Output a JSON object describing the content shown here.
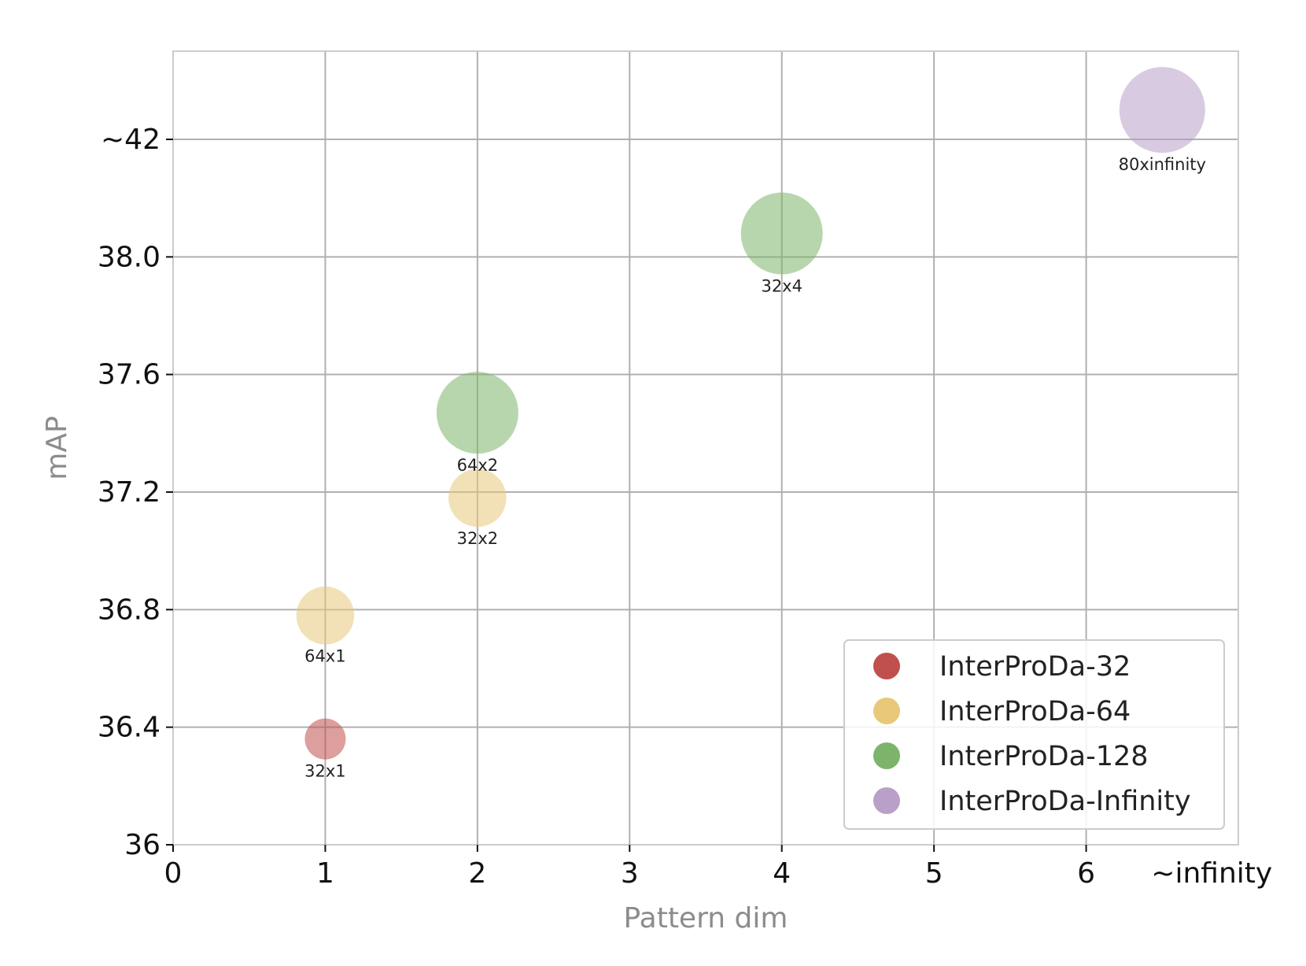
{
  "chart_data": {
    "type": "scatter",
    "xlabel": "Pattern dim",
    "ylabel": "mAP",
    "x_ticks": [
      {
        "value": 0,
        "label": "0"
      },
      {
        "value": 1,
        "label": "1"
      },
      {
        "value": 2,
        "label": "2"
      },
      {
        "value": 3,
        "label": "3"
      },
      {
        "value": 4,
        "label": "4"
      },
      {
        "value": 5,
        "label": "5"
      },
      {
        "value": 6,
        "label": "6"
      },
      {
        "value": 6.5,
        "label": "~infinity"
      }
    ],
    "y_ticks": [
      {
        "value": 36.0,
        "label": "36"
      },
      {
        "value": 36.4,
        "label": "36.4"
      },
      {
        "value": 36.8,
        "label": "36.8"
      },
      {
        "value": 37.2,
        "label": "37.2"
      },
      {
        "value": 37.6,
        "label": "37.6"
      },
      {
        "value": 38.0,
        "label": "38.0"
      },
      {
        "value": 38.4,
        "label": "~42"
      }
    ],
    "xlim": [
      0,
      7
    ],
    "ylim": [
      36.0,
      38.7
    ],
    "grid": true,
    "legend_position": "bottom-right",
    "series": [
      {
        "name": "InterProDa-32",
        "color": "#c0504d",
        "points": [
          {
            "x": 1,
            "y": 36.36,
            "label": "32x1",
            "size": 1
          }
        ]
      },
      {
        "name": "InterProDa-64",
        "color": "#e8c97a",
        "points": [
          {
            "x": 1,
            "y": 36.78,
            "label": "64x1",
            "size": 2
          },
          {
            "x": 2,
            "y": 37.18,
            "label": "32x2",
            "size": 2
          }
        ]
      },
      {
        "name": "InterProDa-128",
        "color": "#7db46c",
        "points": [
          {
            "x": 2,
            "y": 37.47,
            "label": "64x2",
            "size": 4
          },
          {
            "x": 4,
            "y": 38.08,
            "label": "32x4",
            "size": 4
          }
        ]
      },
      {
        "name": "InterProDa-Infinity",
        "color": "#b8a0c8",
        "points": [
          {
            "x": 6.5,
            "y": 38.5,
            "label": "80xinfinity",
            "size": 4.4
          }
        ]
      }
    ]
  }
}
